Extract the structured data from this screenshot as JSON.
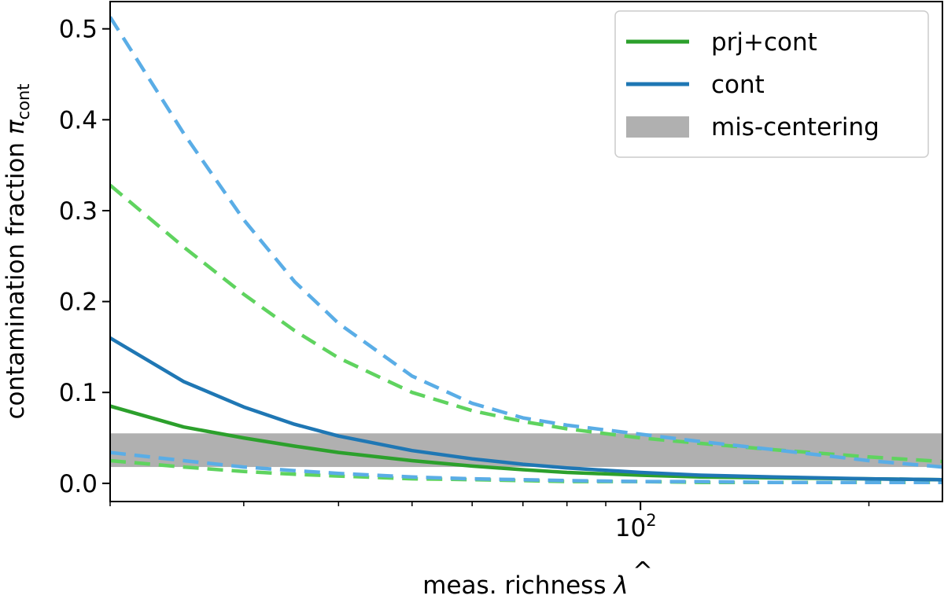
{
  "chart_data": {
    "type": "line",
    "title": "",
    "xlabel": "meas. richness",
    "xlabel_symbol": "λ",
    "xlabel_hat": "^",
    "ylabel": "contamination fraction",
    "ylabel_symbol": "π",
    "ylabel_subscript": "cont",
    "xscale": "log",
    "xlim": [
      20,
      250
    ],
    "ylim": [
      -0.02,
      0.53
    ],
    "grid": false,
    "legend_position": "top-right",
    "yticks": [
      "0.0",
      "0.1",
      "0.2",
      "0.3",
      "0.4",
      "0.5"
    ],
    "ytick_values": [
      0.0,
      0.1,
      0.2,
      0.3,
      0.4,
      0.5
    ],
    "xtick_major": {
      "base": "10",
      "exp": "2",
      "value": 100
    },
    "xtick_minor_values": [
      20,
      30,
      40,
      50,
      60,
      70,
      80,
      90,
      200
    ],
    "band": {
      "name": "mis-centering",
      "y_low": 0.018,
      "y_high": 0.055,
      "color": "#b0b0b0"
    },
    "x": [
      20,
      25,
      30,
      35,
      40,
      50,
      60,
      70,
      80,
      100,
      120,
      150,
      200,
      250
    ],
    "series": [
      {
        "name": "prj+cont",
        "style": "solid",
        "color": "#2ca02c",
        "in_legend": true,
        "values": [
          0.085,
          0.062,
          0.05,
          0.041,
          0.034,
          0.025,
          0.019,
          0.015,
          0.012,
          0.009,
          0.007,
          0.006,
          0.005,
          0.004
        ]
      },
      {
        "name": "cont",
        "style": "solid",
        "color": "#1f77b4",
        "in_legend": true,
        "values": [
          0.16,
          0.112,
          0.084,
          0.065,
          0.052,
          0.036,
          0.027,
          0.021,
          0.017,
          0.012,
          0.009,
          0.007,
          0.005,
          0.004
        ]
      },
      {
        "name": "prj+cont upper",
        "style": "dashed",
        "color": "#5fd35f",
        "in_legend": false,
        "values": [
          0.328,
          0.26,
          0.208,
          0.168,
          0.138,
          0.1,
          0.08,
          0.068,
          0.06,
          0.05,
          0.044,
          0.037,
          0.029,
          0.024
        ]
      },
      {
        "name": "prj+cont lower",
        "style": "dashed",
        "color": "#5fd35f",
        "in_legend": false,
        "values": [
          0.025,
          0.018,
          0.013,
          0.01,
          0.008,
          0.005,
          0.004,
          0.003,
          0.002,
          0.002,
          0.001,
          0.001,
          0.001,
          0.001
        ]
      },
      {
        "name": "cont upper",
        "style": "dashed",
        "color": "#5aade6",
        "in_legend": false,
        "values": [
          0.513,
          0.385,
          0.29,
          0.222,
          0.176,
          0.118,
          0.088,
          0.072,
          0.064,
          0.054,
          0.046,
          0.037,
          0.025,
          0.018
        ]
      },
      {
        "name": "cont lower",
        "style": "dashed",
        "color": "#5aade6",
        "in_legend": false,
        "values": [
          0.034,
          0.025,
          0.018,
          0.014,
          0.011,
          0.007,
          0.005,
          0.004,
          0.003,
          0.002,
          0.002,
          0.001,
          0.001,
          0.001
        ]
      }
    ]
  }
}
